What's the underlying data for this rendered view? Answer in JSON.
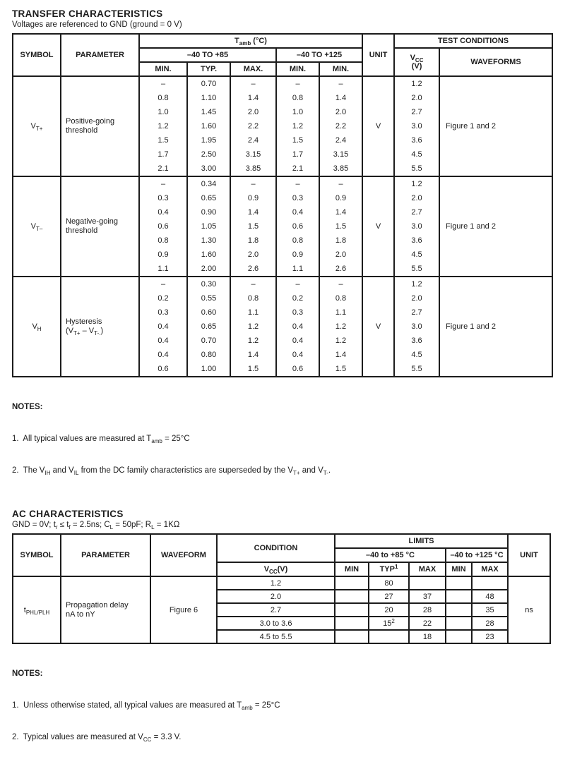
{
  "transfer": {
    "title": "TRANSFER CHARACTERISTICS",
    "subtitle": "Voltages are referenced to GND (ground = 0 V)",
    "header": {
      "symbol": "SYMBOL",
      "parameter": "PARAMETER",
      "tamb": [
        {
          "t": "T"
        },
        {
          "sub": "amb"
        },
        {
          "t": " (°C)"
        }
      ],
      "test_conditions": "TEST CONDITIONS",
      "range85": "–40 TO +85",
      "range125": "–40 TO +125",
      "unit": "UNIT",
      "vcc_line1": [
        {
          "t": "V"
        },
        {
          "sub": "CC"
        }
      ],
      "vcc_line2": "(V)",
      "waveforms": "WAVEFORMS",
      "col_min": "MIN.",
      "col_typ": "TYP.",
      "col_max": "MAX.",
      "col_min125a": "MIN.",
      "col_min125b": "MIN."
    },
    "groups": [
      {
        "symbol": [
          {
            "t": "V"
          },
          {
            "sub": "T+"
          }
        ],
        "parameter_line1": "Positive-going",
        "parameter_line2": [
          {
            "t": "threshold"
          }
        ],
        "min": [
          "–",
          "0.8",
          "1.0",
          "1.2",
          "1.5",
          "1.7",
          "2.1"
        ],
        "typ": [
          "0.70",
          "1.10",
          "1.45",
          "1.60",
          "1.95",
          "2.50",
          "3.00"
        ],
        "max": [
          "–",
          "1.4",
          "2.0",
          "2.2",
          "2.4",
          "3.15",
          "3.85"
        ],
        "min125": [
          "–",
          "0.8",
          "1.0",
          "1.2",
          "1.5",
          "1.7",
          "2.1"
        ],
        "col5": [
          "–",
          "1.4",
          "2.0",
          "2.2",
          "2.4",
          "3.15",
          "3.85"
        ],
        "unit": "V",
        "vcc": [
          "1.2",
          "2.0",
          "2.7",
          "3.0",
          "3.6",
          "4.5",
          "5.5"
        ],
        "waveforms": "Figure 1 and 2"
      },
      {
        "symbol": [
          {
            "t": "V"
          },
          {
            "sub": "T–"
          }
        ],
        "parameter_line1": "Negative-going",
        "parameter_line2": [
          {
            "t": "threshold"
          }
        ],
        "min": [
          "–",
          "0.3",
          "0.4",
          "0.6",
          "0.8",
          "0.9",
          "1.1"
        ],
        "typ": [
          "0.34",
          "0.65",
          "0.90",
          "1.05",
          "1.30",
          "1.60",
          "2.00"
        ],
        "max": [
          "–",
          "0.9",
          "1.4",
          "1.5",
          "1.8",
          "2.0",
          "2.6"
        ],
        "min125": [
          "–",
          "0.3",
          "0.4",
          "0.6",
          "0.8",
          "0.9",
          "1.1"
        ],
        "col5": [
          "–",
          "0.9",
          "1.4",
          "1.5",
          "1.8",
          "2.0",
          "2.6"
        ],
        "unit": "V",
        "vcc": [
          "1.2",
          "2.0",
          "2.7",
          "3.0",
          "3.6",
          "4.5",
          "5.5"
        ],
        "waveforms": "Figure 1 and 2"
      },
      {
        "symbol": [
          {
            "t": "V"
          },
          {
            "sub": "H"
          }
        ],
        "parameter_line1": "Hysteresis",
        "parameter_line2": [
          {
            "t": "(V"
          },
          {
            "sub": "T+"
          },
          {
            "t": " – V"
          },
          {
            "sub": "T-."
          },
          {
            "t": ")"
          }
        ],
        "min": [
          "–",
          "0.2",
          "0.3",
          "0.4",
          "0.4",
          "0.4",
          "0.6"
        ],
        "typ": [
          "0.30",
          "0.55",
          "0.60",
          "0.65",
          "0.70",
          "0.80",
          "1.00"
        ],
        "max": [
          "–",
          "0.8",
          "1.1",
          "1.2",
          "1.2",
          "1.4",
          "1.5"
        ],
        "min125": [
          "–",
          "0.2",
          "0.3",
          "0.4",
          "0.4",
          "0.4",
          "0.6"
        ],
        "col5": [
          "–",
          "0.8",
          "1.1",
          "1.2",
          "1.2",
          "1.4",
          "1.5"
        ],
        "unit": "V",
        "vcc": [
          "1.2",
          "2.0",
          "2.7",
          "3.0",
          "3.6",
          "4.5",
          "5.5"
        ],
        "waveforms": "Figure 1 and 2"
      }
    ],
    "notes": {
      "label": "NOTES:",
      "n1": [
        {
          "t": "1.  All typical values are measured at T"
        },
        {
          "sub": "amb"
        },
        {
          "t": " = 25°C"
        }
      ],
      "n2": [
        {
          "t": "2.  The V"
        },
        {
          "sub": "IH"
        },
        {
          "t": " and V"
        },
        {
          "sub": "IL"
        },
        {
          "t": " from the DC family characteristics are superseded by the V"
        },
        {
          "sub": "T+"
        },
        {
          "t": " and V"
        },
        {
          "sub": "T-"
        },
        {
          "t": "."
        }
      ]
    }
  },
  "ac": {
    "title": "AC CHARACTERISTICS",
    "subtitle": [
      {
        "t": "GND = 0V; t"
      },
      {
        "sub": "r"
      },
      {
        "t": " ≤ t"
      },
      {
        "sub": "f"
      },
      {
        "t": " = 2.5ns; C"
      },
      {
        "sub": "L"
      },
      {
        "t": " = 50pF; R"
      },
      {
        "sub": "L"
      },
      {
        "t": " = 1KΩ"
      }
    ],
    "header": {
      "symbol": "SYMBOL",
      "parameter": "PARAMETER",
      "waveform": "WAVEFORM",
      "condition": "CONDITION",
      "limits": "LIMITS",
      "unit": "UNIT",
      "range85": "–40 to +85 °C",
      "range125": "–40 to +125 °C",
      "vcc": [
        {
          "t": "V"
        },
        {
          "sub": "CC"
        },
        {
          "t": "(V)"
        }
      ],
      "col_min85": "MIN",
      "col_typ85": [
        {
          "t": "TYP"
        },
        {
          "sup": "1"
        }
      ],
      "col_max85": "MAX",
      "col_min125": "MIN",
      "col_max125": "MAX"
    },
    "row": {
      "symbol": [
        {
          "t": "t"
        },
        {
          "sub": "PHL/PLH"
        }
      ],
      "parameter_line1": "Propagation delay",
      "parameter_line2": "nA to nY",
      "waveform": "Figure 6",
      "unit": "ns",
      "conditions": [
        {
          "vcc": "1.2",
          "min": "",
          "typ": [
            {
              "t": "80"
            }
          ],
          "max": "",
          "min125": "",
          "max125": ""
        },
        {
          "vcc": "2.0",
          "min": "",
          "typ": [
            {
              "t": "27"
            }
          ],
          "max": "37",
          "min125": "",
          "max125": "48"
        },
        {
          "vcc": "2.7",
          "min": "",
          "typ": [
            {
              "t": "20"
            }
          ],
          "max": "28",
          "min125": "",
          "max125": "35"
        },
        {
          "vcc": "3.0 to 3.6",
          "min": "",
          "typ": [
            {
              "t": "15"
            },
            {
              "sup": "2"
            }
          ],
          "max": "22",
          "min125": "",
          "max125": "28"
        },
        {
          "vcc": "4.5 to 5.5",
          "min": "",
          "typ": [],
          "max": "18",
          "min125": "",
          "max125": "23"
        }
      ]
    },
    "notes": {
      "label": "NOTES:",
      "n1": [
        {
          "t": "1.  Unless otherwise stated, all typical values are measured at T"
        },
        {
          "sub": "amb"
        },
        {
          "t": " = 25°C"
        }
      ],
      "n2": [
        {
          "t": "2.  Typical values are measured at V"
        },
        {
          "sub": "CC"
        },
        {
          "t": " = 3.3 V."
        }
      ]
    }
  }
}
